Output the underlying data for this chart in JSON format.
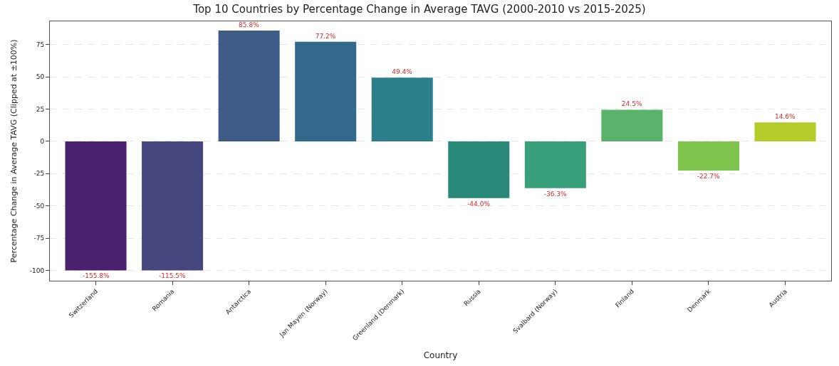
{
  "chart_data": {
    "type": "bar",
    "title": "Top 10 Countries by Percentage Change in Average TAVG (2000-2010 vs 2015-2025)",
    "xlabel": "Country",
    "ylabel": "Percentage Change in Average TAVG (Clipped at ±100%)",
    "categories": [
      "Switzerland",
      "Romania",
      "Antarctica",
      "Jan Mayen (Norway)",
      "Greenland (Denmark)",
      "Russia",
      "Svalbard (Norway)",
      "Finland",
      "Denmark",
      "Austria"
    ],
    "values": [
      -100,
      -100,
      85.8,
      77.2,
      49.4,
      -44.0,
      -36.3,
      24.5,
      -22.7,
      14.6
    ],
    "annotations": [
      {
        "text": "-155.8%",
        "x": "Switzerland",
        "y": -100
      },
      {
        "text": "-115.5%",
        "x": "Romania",
        "y": -100
      }
    ],
    "value_labels": [
      null,
      null,
      "85.8%",
      "77.2%",
      "49.4%",
      "-44.0%",
      "-36.3%",
      "24.5%",
      "-22.7%",
      "14.6%"
    ],
    "colors": [
      "#48226e",
      "#46467f",
      "#3f5b88",
      "#33698a",
      "#2a7f8a",
      "#2a8a7a",
      "#37a07a",
      "#5ab36a",
      "#7ec34c",
      "#b4cb2a"
    ],
    "ylim": [
      -108,
      93
    ],
    "yticks": [
      -100,
      -75,
      -50,
      -25,
      0,
      25,
      50,
      75
    ],
    "grid": "y"
  }
}
